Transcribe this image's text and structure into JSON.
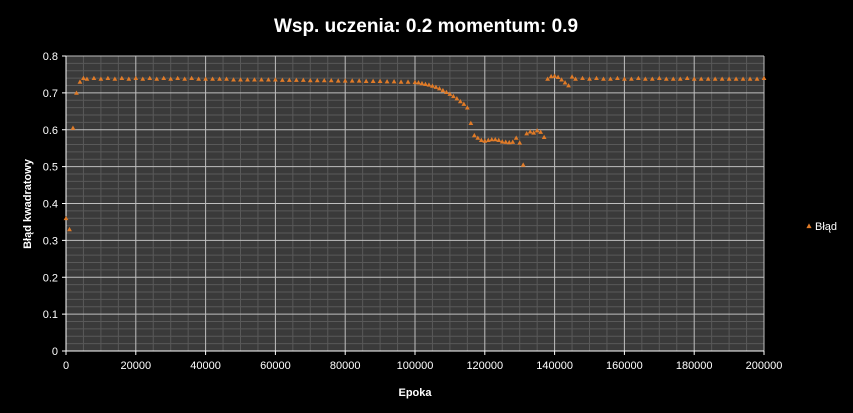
{
  "chart_data": {
    "type": "scatter",
    "title": "Wsp. uczenia: 0.2 momentum: 0.9",
    "xlabel": "Epoka",
    "ylabel": "Błąd kwadratowy",
    "xlim": [
      0,
      200000
    ],
    "ylim": [
      0,
      0.8
    ],
    "x_ticks": [
      "0",
      "20000",
      "40000",
      "60000",
      "80000",
      "100000",
      "120000",
      "140000",
      "160000",
      "180000",
      "200000"
    ],
    "y_ticks": [
      "0",
      "0.1",
      "0.2",
      "0.3",
      "0.4",
      "0.5",
      "0.6",
      "0.7",
      "0.8"
    ],
    "grid": true,
    "plot_background": "#3a3a3a",
    "legend_position": "right",
    "series": [
      {
        "name": "Błąd",
        "color": "#e07b28",
        "marker": "triangle",
        "points": [
          [
            0,
            0.36
          ],
          [
            1000,
            0.33
          ],
          [
            2000,
            0.605
          ],
          [
            3000,
            0.7
          ],
          [
            4000,
            0.73
          ],
          [
            5000,
            0.74
          ],
          [
            6000,
            0.738
          ],
          [
            8000,
            0.74
          ],
          [
            10000,
            0.738
          ],
          [
            12000,
            0.74
          ],
          [
            14000,
            0.738
          ],
          [
            16000,
            0.74
          ],
          [
            18000,
            0.738
          ],
          [
            20000,
            0.74
          ],
          [
            22000,
            0.738
          ],
          [
            24000,
            0.74
          ],
          [
            26000,
            0.738
          ],
          [
            28000,
            0.74
          ],
          [
            30000,
            0.738
          ],
          [
            32000,
            0.74
          ],
          [
            34000,
            0.738
          ],
          [
            36000,
            0.74
          ],
          [
            38000,
            0.738
          ],
          [
            40000,
            0.738
          ],
          [
            42000,
            0.738
          ],
          [
            44000,
            0.738
          ],
          [
            46000,
            0.738
          ],
          [
            48000,
            0.736
          ],
          [
            50000,
            0.736
          ],
          [
            52000,
            0.736
          ],
          [
            54000,
            0.736
          ],
          [
            56000,
            0.736
          ],
          [
            58000,
            0.736
          ],
          [
            60000,
            0.736
          ],
          [
            62000,
            0.735
          ],
          [
            64000,
            0.735
          ],
          [
            66000,
            0.735
          ],
          [
            68000,
            0.735
          ],
          [
            70000,
            0.734
          ],
          [
            72000,
            0.734
          ],
          [
            74000,
            0.734
          ],
          [
            76000,
            0.734
          ],
          [
            78000,
            0.733
          ],
          [
            80000,
            0.733
          ],
          [
            82000,
            0.733
          ],
          [
            84000,
            0.733
          ],
          [
            86000,
            0.732
          ],
          [
            88000,
            0.732
          ],
          [
            90000,
            0.732
          ],
          [
            92000,
            0.731
          ],
          [
            94000,
            0.731
          ],
          [
            96000,
            0.73
          ],
          [
            98000,
            0.73
          ],
          [
            100000,
            0.729
          ],
          [
            101000,
            0.728
          ],
          [
            102000,
            0.726
          ],
          [
            103000,
            0.724
          ],
          [
            104000,
            0.722
          ],
          [
            105000,
            0.719
          ],
          [
            106000,
            0.716
          ],
          [
            107000,
            0.712
          ],
          [
            108000,
            0.707
          ],
          [
            109000,
            0.702
          ],
          [
            110000,
            0.697
          ],
          [
            111000,
            0.691
          ],
          [
            112000,
            0.685
          ],
          [
            113000,
            0.677
          ],
          [
            114000,
            0.67
          ],
          [
            115000,
            0.66
          ],
          [
            116000,
            0.618
          ],
          [
            117000,
            0.585
          ],
          [
            118000,
            0.578
          ],
          [
            119000,
            0.572
          ],
          [
            120000,
            0.57
          ],
          [
            121000,
            0.572
          ],
          [
            122000,
            0.574
          ],
          [
            123000,
            0.574
          ],
          [
            124000,
            0.572
          ],
          [
            125000,
            0.568
          ],
          [
            126000,
            0.567
          ],
          [
            127000,
            0.566
          ],
          [
            128000,
            0.567
          ],
          [
            129000,
            0.578
          ],
          [
            130000,
            0.565
          ],
          [
            131000,
            0.505
          ],
          [
            132000,
            0.59
          ],
          [
            133000,
            0.595
          ],
          [
            134000,
            0.592
          ],
          [
            135000,
            0.598
          ],
          [
            136000,
            0.594
          ],
          [
            137000,
            0.58
          ],
          [
            138000,
            0.738
          ],
          [
            139000,
            0.745
          ],
          [
            140000,
            0.746
          ],
          [
            141000,
            0.743
          ],
          [
            142000,
            0.736
          ],
          [
            143000,
            0.728
          ],
          [
            144000,
            0.72
          ],
          [
            145000,
            0.744
          ],
          [
            146000,
            0.738
          ],
          [
            148000,
            0.74
          ],
          [
            150000,
            0.738
          ],
          [
            152000,
            0.74
          ],
          [
            154000,
            0.738
          ],
          [
            156000,
            0.738
          ],
          [
            158000,
            0.74
          ],
          [
            160000,
            0.738
          ],
          [
            162000,
            0.738
          ],
          [
            164000,
            0.74
          ],
          [
            166000,
            0.738
          ],
          [
            168000,
            0.738
          ],
          [
            170000,
            0.74
          ],
          [
            172000,
            0.738
          ],
          [
            174000,
            0.738
          ],
          [
            176000,
            0.738
          ],
          [
            178000,
            0.74
          ],
          [
            180000,
            0.738
          ],
          [
            182000,
            0.738
          ],
          [
            184000,
            0.738
          ],
          [
            186000,
            0.738
          ],
          [
            188000,
            0.738
          ],
          [
            190000,
            0.738
          ],
          [
            192000,
            0.738
          ],
          [
            194000,
            0.738
          ],
          [
            196000,
            0.738
          ],
          [
            198000,
            0.738
          ],
          [
            200000,
            0.74
          ]
        ]
      }
    ]
  }
}
